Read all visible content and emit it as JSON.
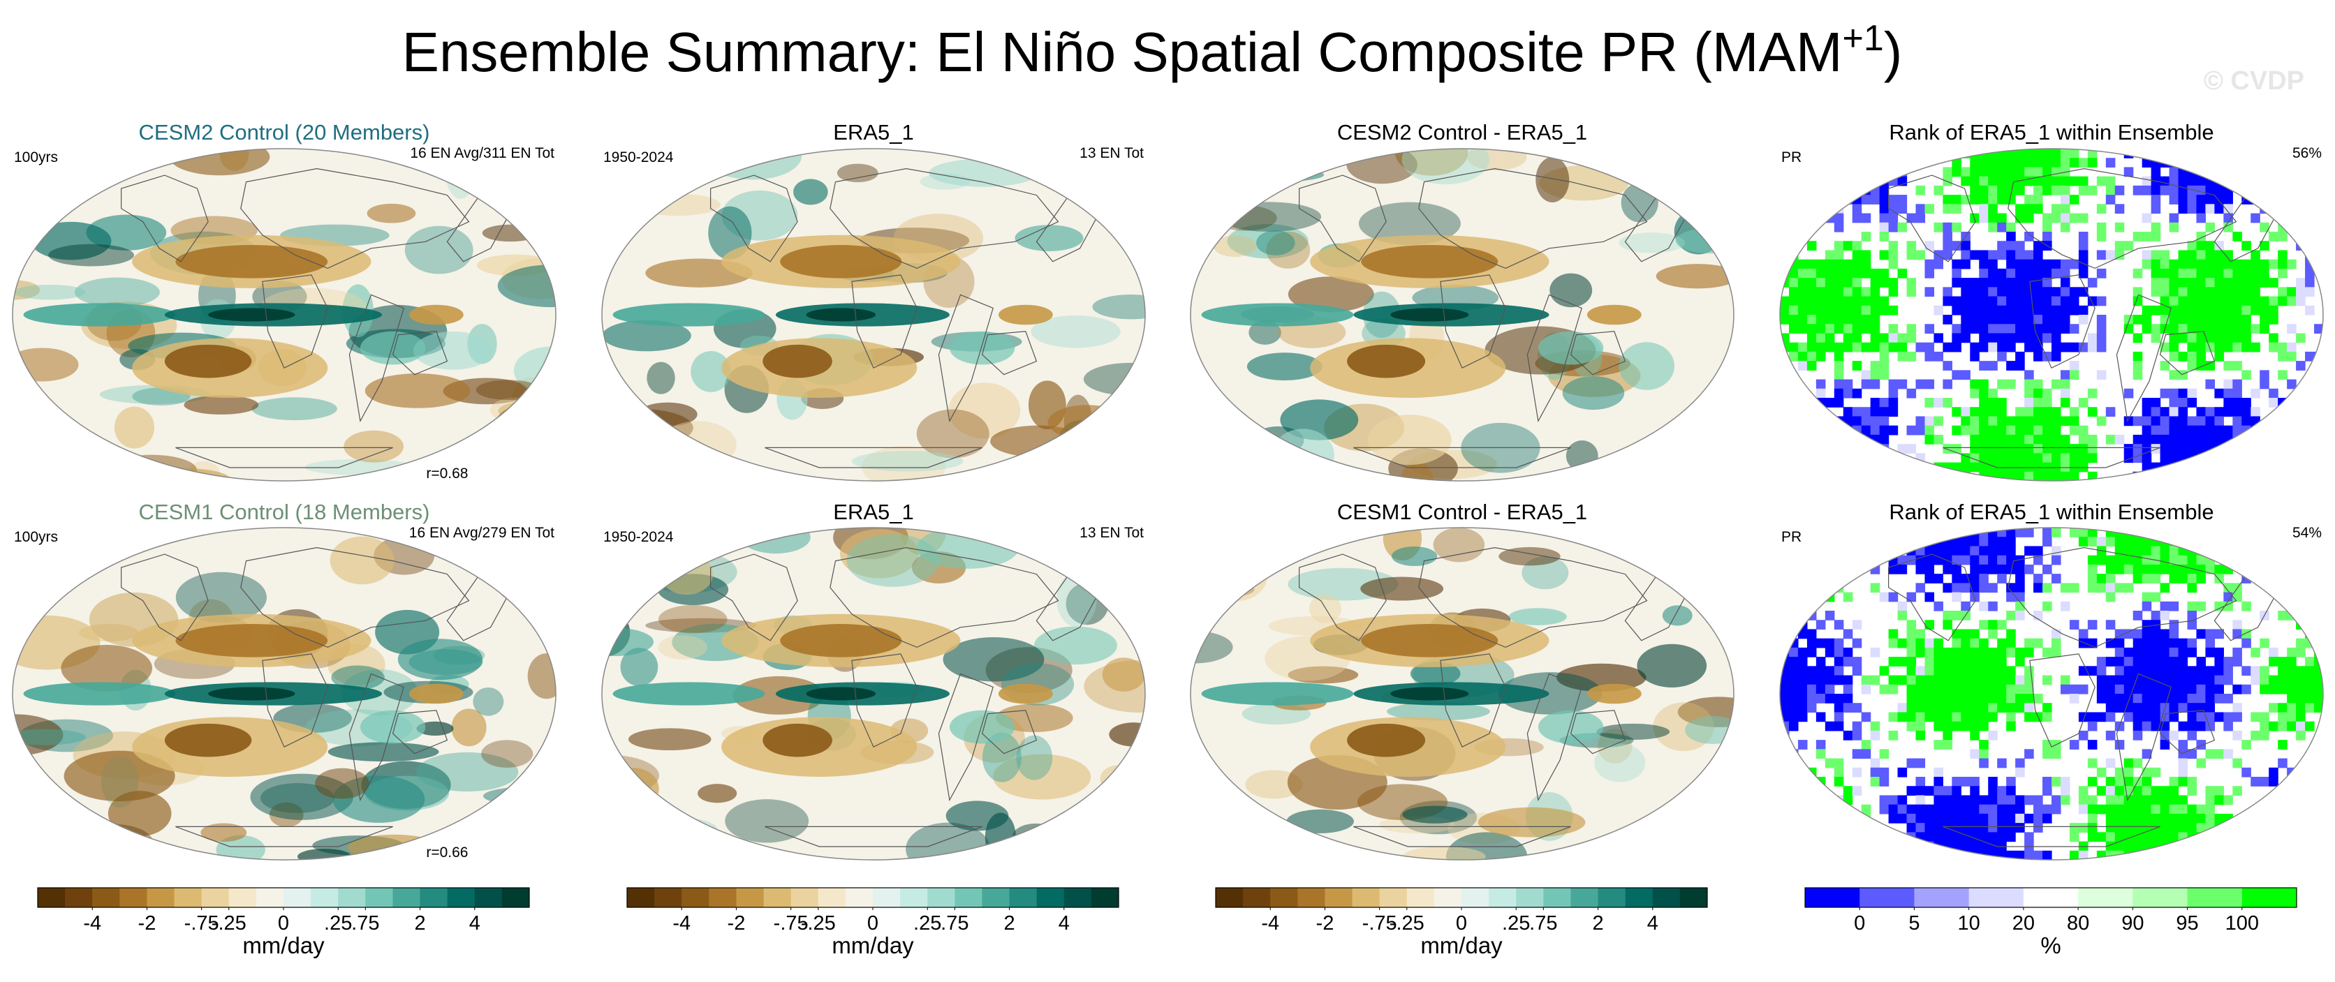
{
  "title": {
    "main": "Ensemble Summary: El Niño Spatial Composite PR (MAM",
    "superscript": "+1",
    "close": ")"
  },
  "watermark": "© CVDP",
  "colors": {
    "brown_teal": [
      "#543005",
      "#6f420d",
      "#8c5a17",
      "#aa7528",
      "#c69845",
      "#dcba72",
      "#ebd39f",
      "#f5e8ca",
      "#f5f2e8",
      "#e3f2ef",
      "#c6ebe4",
      "#a1dbd0",
      "#73c6b5",
      "#47a899",
      "#238b80",
      "#036b63",
      "#01514a",
      "#003c30"
    ],
    "rank": [
      "#0000ff",
      "#5b5bff",
      "#a3a3ff",
      "#dcdcff",
      "#ffffff",
      "#ddffdd",
      "#b5ffb5",
      "#6cff6c",
      "#00ff00"
    ],
    "model_cesm2": "#1f6e7f",
    "model_cesm1": "#6d8f74"
  },
  "chart_data": [
    {
      "type": "heatmap",
      "panel": "CESM2 Control ensemble mean El Niño composite",
      "title": "CESM2 Control (20 Members)",
      "title_color": "#1f6e7f",
      "left_label": "100yrs",
      "right_label": "16 EN Avg/311 EN Tot",
      "bottom_right_label": "r=0.68",
      "colorbar": "pr",
      "pattern_seed": 1,
      "pattern_strength": 1.0
    },
    {
      "type": "heatmap",
      "panel": "Observed El Niño composite",
      "title": "ERA5_1",
      "left_label": "1950-2024",
      "right_label": "13 EN Tot",
      "colorbar": "pr",
      "pattern_seed": 2,
      "pattern_strength": 0.8
    },
    {
      "type": "heatmap",
      "panel": "Difference",
      "title": "CESM2 Control - ERA5_1",
      "colorbar": "pr",
      "pattern_seed": 3,
      "pattern_strength": 0.9
    },
    {
      "type": "heatmap",
      "panel": "Rank",
      "title": "Rank of ERA5_1 within Ensemble",
      "left_label": "PR",
      "right_label": "56%",
      "colorbar": "rank",
      "pattern_seed": 4
    },
    {
      "type": "heatmap",
      "panel": "CESM1 Control ensemble mean El Niño composite",
      "title": "CESM1 Control (18 Members)",
      "title_color": "#6d8f74",
      "left_label": "100yrs",
      "right_label": "16 EN Avg/279 EN Tot",
      "bottom_right_label": "r=0.66",
      "colorbar": "pr",
      "pattern_seed": 5,
      "pattern_strength": 1.0
    },
    {
      "type": "heatmap",
      "panel": "Observed El Niño composite",
      "title": "ERA5_1",
      "left_label": "1950-2024",
      "right_label": "13 EN Tot",
      "colorbar": "pr",
      "pattern_seed": 6,
      "pattern_strength": 0.8
    },
    {
      "type": "heatmap",
      "panel": "Difference",
      "title": "CESM1 Control - ERA5_1",
      "colorbar": "pr",
      "pattern_seed": 7,
      "pattern_strength": 0.9
    },
    {
      "type": "heatmap",
      "panel": "Rank",
      "title": "Rank of ERA5_1 within Ensemble",
      "left_label": "PR",
      "right_label": "54%",
      "colorbar": "rank",
      "pattern_seed": 8
    }
  ],
  "colorbars": {
    "pr": {
      "labels": [
        "-4",
        "-2",
        "-.75",
        "-.25",
        "0",
        ".25",
        ".75",
        "2",
        "4"
      ],
      "label_boundaries": [
        2,
        4,
        6,
        7,
        9,
        11,
        12,
        14,
        16
      ],
      "units": "mm/day"
    },
    "rank": {
      "labels": [
        "0",
        "5",
        "10",
        "20",
        "80",
        "90",
        "95",
        "100"
      ],
      "label_boundaries": [
        1,
        2,
        3,
        4,
        5,
        6,
        7,
        8
      ],
      "units": "%"
    }
  }
}
